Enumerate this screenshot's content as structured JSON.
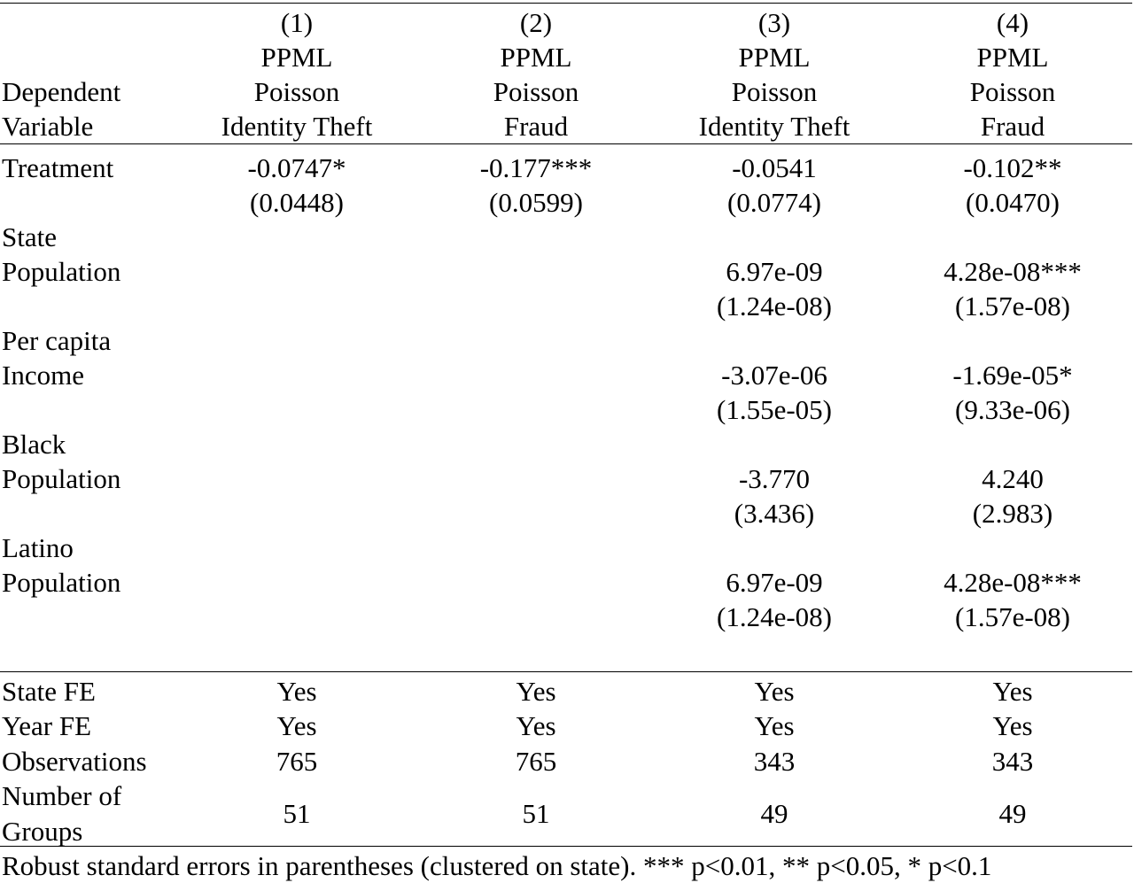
{
  "columns": [
    {
      "number": "(1)",
      "method": "PPML",
      "model": "Poisson",
      "dv": "Identity Theft"
    },
    {
      "number": "(2)",
      "method": "PPML",
      "model": "Poisson",
      "dv": "Fraud"
    },
    {
      "number": "(3)",
      "method": "PPML",
      "model": "Poisson",
      "dv": "Identity Theft"
    },
    {
      "number": "(4)",
      "method": "PPML",
      "model": "Poisson",
      "dv": "Fraud"
    }
  ],
  "header_label": {
    "line1": "Dependent",
    "line2": "Variable"
  },
  "variables": {
    "treatment": {
      "label": "Treatment",
      "coef": [
        "-0.0747*",
        "-0.177***",
        "-0.0541",
        "-0.102**"
      ],
      "se": [
        "(0.0448)",
        "(0.0599)",
        "(0.0774)",
        "(0.0470)"
      ]
    },
    "state_population": {
      "label1": "State",
      "label2": "Population",
      "coef": [
        "",
        "",
        "6.97e-09",
        "4.28e-08***"
      ],
      "se": [
        "",
        "",
        "(1.24e-08)",
        "(1.57e-08)"
      ]
    },
    "per_capita_income": {
      "label1": "Per capita",
      "label2": "Income",
      "coef": [
        "",
        "",
        "-3.07e-06",
        "-1.69e-05*"
      ],
      "se": [
        "",
        "",
        "(1.55e-05)",
        "(9.33e-06)"
      ]
    },
    "black_population": {
      "label1": "Black",
      "label2": "Population",
      "coef": [
        "",
        "",
        "-3.770",
        "4.240"
      ],
      "se": [
        "",
        "",
        "(3.436)",
        "(2.983)"
      ]
    },
    "latino_population": {
      "label1": "Latino",
      "label2": "Population",
      "coef": [
        "",
        "",
        "6.97e-09",
        "4.28e-08***"
      ],
      "se": [
        "",
        "",
        "(1.24e-08)",
        "(1.57e-08)"
      ]
    }
  },
  "stats": {
    "state_fe": {
      "label": "State FE",
      "values": [
        "Yes",
        "Yes",
        "Yes",
        "Yes"
      ]
    },
    "year_fe": {
      "label": "Year FE",
      "values": [
        "Yes",
        "Yes",
        "Yes",
        "Yes"
      ]
    },
    "observations": {
      "label": "Observations",
      "values": [
        "765",
        "765",
        "343",
        "343"
      ]
    },
    "groups": {
      "label1": "Number of",
      "label2": "Groups",
      "values": [
        "51",
        "51",
        "49",
        "49"
      ]
    }
  },
  "footer": "Robust standard errors in parentheses (clustered on state). *** p<0.01, ** p<0.05, * p<0.1"
}
